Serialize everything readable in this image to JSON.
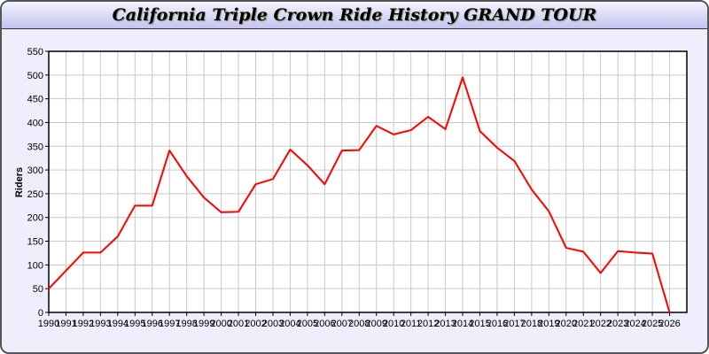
{
  "chart_data": {
    "type": "line",
    "title": "California Triple Crown Ride History GRAND TOUR",
    "xlabel": "",
    "ylabel": "Riders",
    "xlim": [
      1990,
      2027
    ],
    "ylim": [
      0,
      550
    ],
    "ytick_step": 50,
    "grid": true,
    "line_color": "#ff0000",
    "x": [
      1990,
      1991,
      1992,
      1993,
      1994,
      1995,
      1996,
      1997,
      1998,
      1999,
      2000,
      2001,
      2002,
      2003,
      2004,
      2005,
      2006,
      2007,
      2008,
      2009,
      2010,
      2011,
      2012,
      2013,
      2014,
      2015,
      2016,
      2017,
      2018,
      2019,
      2020,
      2021,
      2022,
      2023,
      2024,
      2025,
      2026
    ],
    "values": [
      50,
      88,
      126,
      126,
      160,
      225,
      225,
      341,
      287,
      242,
      211,
      212,
      270,
      281,
      343,
      310,
      270,
      341,
      342,
      393,
      375,
      384,
      412,
      386,
      495,
      382,
      347,
      319,
      259,
      213,
      136,
      128,
      83,
      129,
      126,
      124,
      0
    ]
  }
}
